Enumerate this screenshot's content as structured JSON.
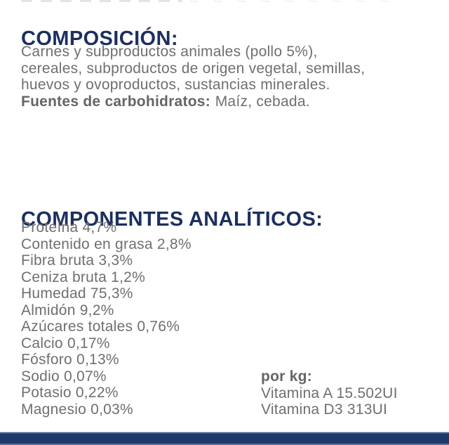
{
  "colors": {
    "page_bg": "#ffffff",
    "heading_navy": "#1c2f5f",
    "body_gray": "#6e6f71",
    "body_gray_bold": "#646568",
    "bar_navy": "#1e3a6d",
    "bar_edge_light": "#ccd4e0"
  },
  "composicion": {
    "heading": "COMPOSICIÓN:",
    "lines": [
      "Carnes y subproductos animales (pollo 5%),",
      "cereales, subproductos de origen vegetal, semillas,",
      "huevos y ovoproductos, sustancias minerales."
    ],
    "carb_label": "Fuentes de carbohidratos:",
    "carb_value": "Maíz, cebada."
  },
  "analiticos": {
    "heading": "COMPONENTES ANALÍTICOS:",
    "items": [
      "Proteína 4,7%",
      "Contenido en grasa 2,8%",
      "Fibra bruta 3,3%",
      "Ceniza bruta 1,2%",
      "Humedad 75,3%",
      "Almidón 9,2%",
      "Azúcares totales 0,76%",
      "Calcio 0,17%",
      "Fósforo 0,13%",
      "Sodio 0,07%",
      "Potasio 0,22%",
      "Magnesio 0,03%"
    ]
  },
  "per_kg": {
    "label": "por kg:",
    "items": [
      "Vitamina A 15.502UI",
      "Vitamina D3 313UI"
    ]
  }
}
